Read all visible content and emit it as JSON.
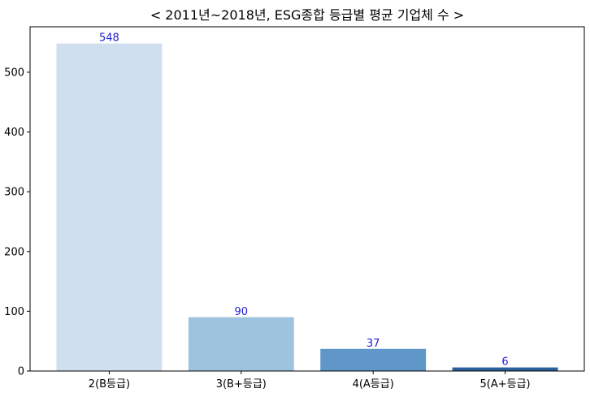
{
  "chart_data": {
    "type": "bar",
    "title": "< 2011년~2018년, ESG종합 등급별 평균 기업체 수 >",
    "categories": [
      "2(B등급)",
      "3(B+등급)",
      "4(A등급)",
      "5(A+등급)"
    ],
    "values": [
      548,
      90,
      37,
      6
    ],
    "value_labels": [
      "548",
      "90",
      "37",
      "6"
    ],
    "xlabel": "",
    "ylabel": "",
    "ylim": [
      0,
      576
    ],
    "yticks": [
      0,
      100,
      200,
      300,
      400,
      500
    ],
    "ytick_labels": [
      "0",
      "100",
      "200",
      "300",
      "400",
      "500"
    ],
    "grid": false,
    "legend": "none",
    "colors": {
      "bars": [
        "#d0dff0",
        "#9ec3de",
        "#5e97c8",
        "#2d5f9b"
      ],
      "data_label": "#1f1fd6",
      "axis": "#000000"
    }
  }
}
